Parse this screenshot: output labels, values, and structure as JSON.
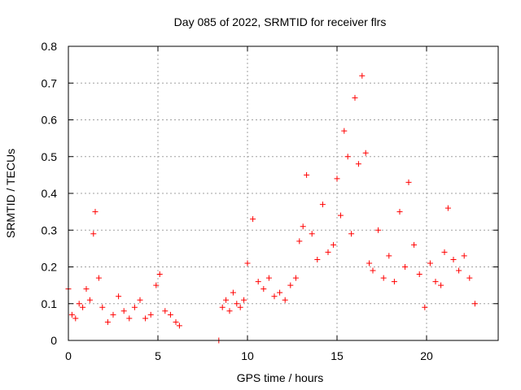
{
  "chart_data": {
    "type": "scatter",
    "title": "Day 085 of 2022, SRMTID for receiver flrs",
    "xlabel": "GPS time / hours",
    "ylabel": "SRMTID / TECUs",
    "xlim": [
      0,
      24
    ],
    "ylim": [
      0,
      0.8
    ],
    "x_ticks": [
      0,
      5,
      10,
      15,
      20
    ],
    "x_tick_labels": [
      "0",
      "5",
      "10",
      "15",
      "20"
    ],
    "y_ticks": [
      0,
      0.1,
      0.2,
      0.3,
      0.4,
      0.5,
      0.6,
      0.7,
      0.8
    ],
    "y_tick_labels": [
      "0",
      "0.1",
      "0.2",
      "0.3",
      "0.4",
      "0.5",
      "0.6",
      "0.7",
      "0.8"
    ],
    "grid": true,
    "marker": "+",
    "color": "#ff0000",
    "series": [
      {
        "name": "flrs",
        "x": [
          0.0,
          0.2,
          0.4,
          0.6,
          0.8,
          1.0,
          1.2,
          1.4,
          1.5,
          1.7,
          1.9,
          2.2,
          2.5,
          2.8,
          3.1,
          3.4,
          3.7,
          4.0,
          4.3,
          4.6,
          4.9,
          5.1,
          5.4,
          5.7,
          6.0,
          6.2,
          8.4,
          8.6,
          8.8,
          9.0,
          9.2,
          9.4,
          9.6,
          9.8,
          10.0,
          10.3,
          10.6,
          10.9,
          11.2,
          11.5,
          11.8,
          12.1,
          12.4,
          12.7,
          12.9,
          13.1,
          13.3,
          13.6,
          13.9,
          14.2,
          14.5,
          14.8,
          15.0,
          15.2,
          15.4,
          15.6,
          15.8,
          16.0,
          16.2,
          16.4,
          16.6,
          16.8,
          17.0,
          17.3,
          17.6,
          17.9,
          18.2,
          18.5,
          18.8,
          19.0,
          19.3,
          19.6,
          19.9,
          20.2,
          20.5,
          20.8,
          21.0,
          21.2,
          21.5,
          21.8,
          22.1,
          22.4,
          22.7
        ],
        "y": [
          0.14,
          0.07,
          0.06,
          0.1,
          0.09,
          0.14,
          0.11,
          0.29,
          0.35,
          0.17,
          0.09,
          0.05,
          0.07,
          0.12,
          0.08,
          0.06,
          0.09,
          0.11,
          0.06,
          0.07,
          0.15,
          0.18,
          0.08,
          0.07,
          0.05,
          0.04,
          0.0,
          0.09,
          0.11,
          0.08,
          0.13,
          0.1,
          0.09,
          0.11,
          0.21,
          0.33,
          0.16,
          0.14,
          0.17,
          0.12,
          0.13,
          0.11,
          0.15,
          0.17,
          0.27,
          0.31,
          0.45,
          0.29,
          0.22,
          0.37,
          0.24,
          0.26,
          0.44,
          0.34,
          0.57,
          0.5,
          0.29,
          0.66,
          0.48,
          0.72,
          0.51,
          0.21,
          0.19,
          0.3,
          0.17,
          0.23,
          0.16,
          0.35,
          0.2,
          0.43,
          0.26,
          0.18,
          0.09,
          0.21,
          0.16,
          0.15,
          0.24,
          0.36,
          0.22,
          0.19,
          0.23,
          0.17,
          0.1
        ]
      }
    ]
  }
}
